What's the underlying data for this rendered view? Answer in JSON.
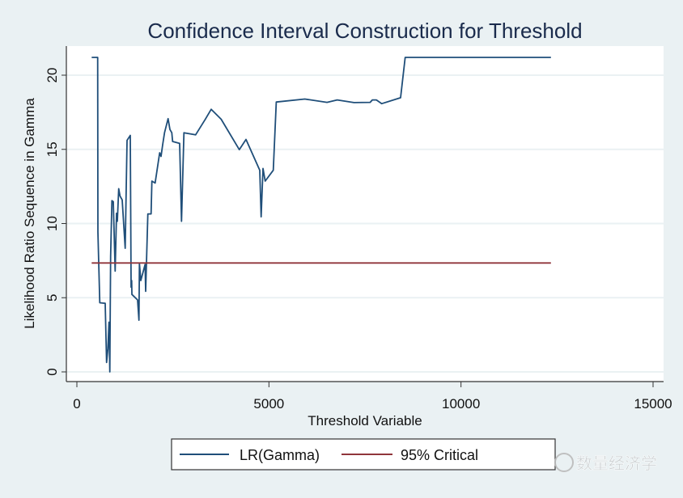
{
  "chart_data": {
    "type": "line",
    "title": "Confidence Interval Construction for Threshold",
    "xlabel": "Threshold Variable",
    "ylabel": "Likelihood Ratio Sequence in Gamma",
    "xlim": [
      0,
      15000
    ],
    "ylim": [
      0,
      22
    ],
    "xticks": [
      0,
      5000,
      10000,
      15000
    ],
    "xtick_labels": [
      "0",
      "5000",
      "10000",
      "15000"
    ],
    "yticks": [
      0,
      5,
      10,
      15,
      20
    ],
    "ytick_labels": [
      "0",
      "5",
      "10",
      "15",
      "20"
    ],
    "grid": "horizontal",
    "legend_position": "bottom",
    "series": [
      {
        "name": "LR(Gamma)",
        "color": "#1f4e79",
        "x": [
          386,
          541,
          548,
          596,
          737,
          773,
          807,
          836,
          858,
          879,
          912,
          948,
          997,
          1032,
          1054,
          1089,
          1123,
          1180,
          1258,
          1306,
          1391,
          1412,
          1426,
          1433,
          1580,
          1616,
          1629,
          1664,
          1776,
          1791,
          1848,
          1932,
          1953,
          2037,
          2155,
          2191,
          2233,
          2282,
          2374,
          2423,
          2472,
          2493,
          2676,
          2724,
          2788,
          3091,
          3336,
          3498,
          3757,
          4229,
          4404,
          4762,
          4798,
          4845,
          4903,
          5114,
          5190,
          5935,
          6511,
          6778,
          7213,
          7634,
          7691,
          7796,
          7937,
          8428,
          8548,
          12341
        ],
        "y": [
          21.2,
          21.2,
          9.42,
          4.66,
          4.62,
          0.64,
          1.54,
          3.35,
          0,
          7.79,
          11.54,
          11.47,
          6.79,
          10.69,
          10.15,
          12.35,
          11.86,
          11.59,
          8.33,
          15.61,
          15.94,
          5.71,
          6.16,
          5.22,
          4.85,
          3.48,
          7.3,
          6.16,
          7.24,
          5.43,
          10.65,
          10.65,
          12.86,
          12.73,
          14.77,
          14.53,
          15.31,
          16.12,
          17.07,
          16.34,
          16.12,
          15.53,
          15.4,
          10.15,
          16.12,
          15.98,
          16.99,
          17.7,
          17.03,
          14.98,
          15.67,
          13.59,
          10.45,
          13.71,
          12.86,
          13.59,
          18.19,
          18.39,
          18.17,
          18.33,
          18.15,
          18.17,
          18.33,
          18.33,
          18.08,
          18.48,
          21.2,
          21.2
        ]
      },
      {
        "name": "95% Critical",
        "color": "#90353b",
        "x": [
          386,
          12341
        ],
        "y": [
          7.34,
          7.34
        ]
      }
    ]
  },
  "watermark": "数量经济学"
}
